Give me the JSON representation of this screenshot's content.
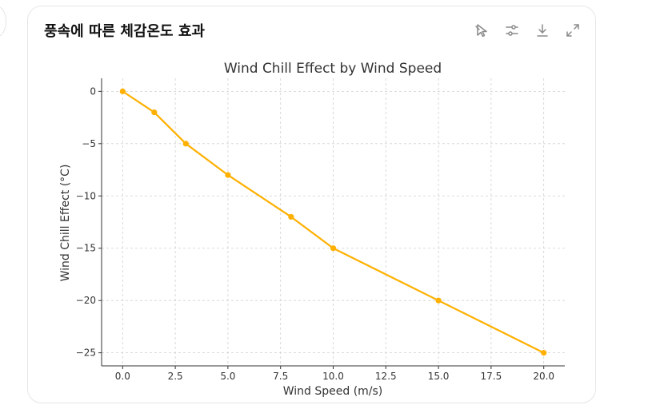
{
  "card": {
    "title": "풍속에 따른 체감온도 효과"
  },
  "toolbar": {
    "icons": [
      "interactive-chart-icon",
      "settings-sliders-icon",
      "download-icon",
      "expand-icon"
    ]
  },
  "colors": {
    "line": "#FFB000",
    "grid": "#d0d0d0",
    "axis": "#333333",
    "text": "#333333"
  },
  "chart_data": {
    "type": "line",
    "title": "Wind Chill Effect by Wind Speed",
    "xlabel": "Wind Speed (m/s)",
    "ylabel": "Wind Chill Effect (°C)",
    "x": [
      0,
      1.5,
      3,
      5,
      8,
      10,
      15,
      20
    ],
    "series": [
      {
        "name": "Wind Chill Effect",
        "values": [
          0,
          -2,
          -5,
          -8,
          -12,
          -15,
          -20,
          -25
        ]
      }
    ],
    "xlim": [
      -1,
      21
    ],
    "ylim": [
      -26.25,
      1.25
    ],
    "xticks": [
      0.0,
      2.5,
      5.0,
      7.5,
      10.0,
      12.5,
      15.0,
      17.5,
      20.0
    ],
    "xtick_labels": [
      "0.0",
      "2.5",
      "5.0",
      "7.5",
      "10.0",
      "12.5",
      "15.0",
      "17.5",
      "20.0"
    ],
    "yticks": [
      0,
      -5,
      -10,
      -15,
      -20,
      -25
    ],
    "ytick_labels": [
      "0",
      "−5",
      "−10",
      "−15",
      "−20",
      "−25"
    ],
    "grid": true
  }
}
